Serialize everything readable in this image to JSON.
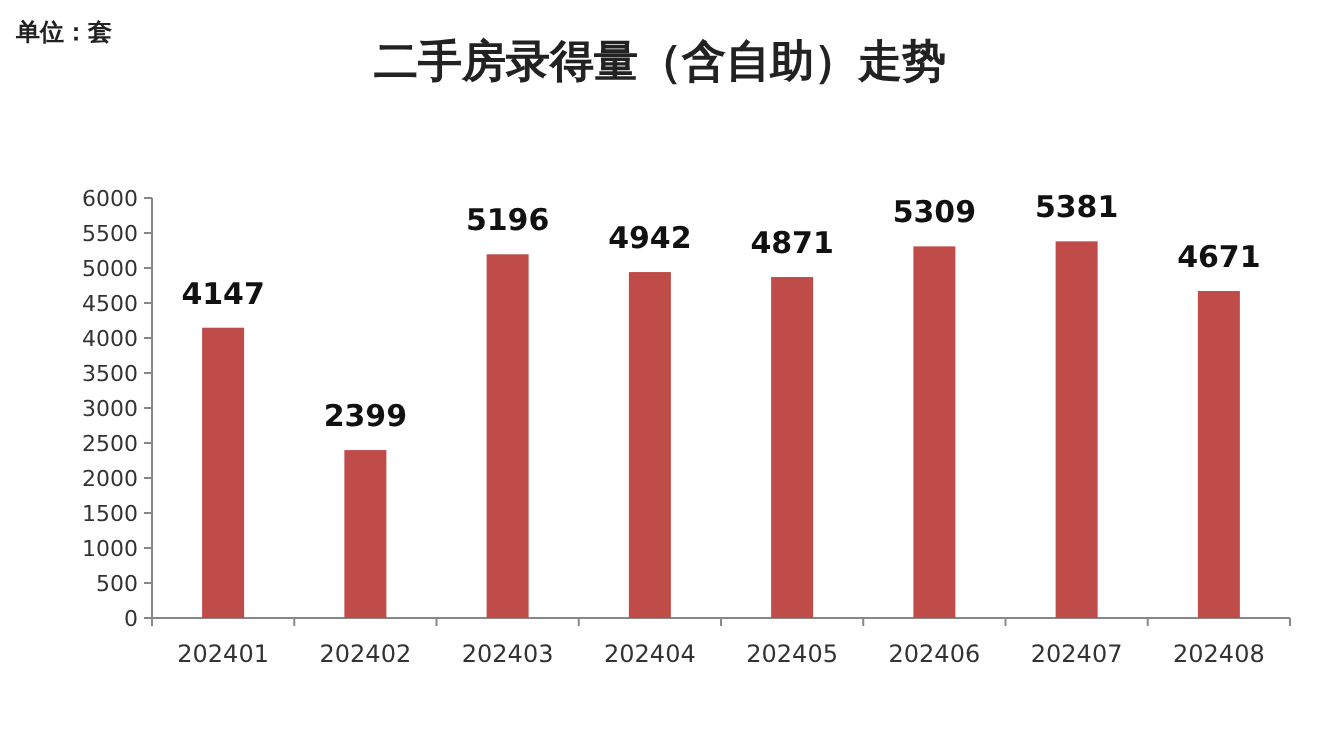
{
  "chart_data": {
    "type": "bar",
    "title": "二手房录得量（含自助）走势",
    "annotations": [
      "单位：套"
    ],
    "categories": [
      "202401",
      "202402",
      "202403",
      "202404",
      "202405",
      "202406",
      "202407",
      "202408"
    ],
    "values": [
      4147,
      2399,
      5196,
      4942,
      4871,
      5309,
      5381,
      4671
    ],
    "color": "#bf4c48",
    "ylim": [
      0,
      6000
    ],
    "yticks": [
      0,
      500,
      1000,
      1500,
      2000,
      2500,
      3000,
      3500,
      4000,
      4500,
      5000,
      5500,
      6000
    ],
    "data_labels": true
  }
}
